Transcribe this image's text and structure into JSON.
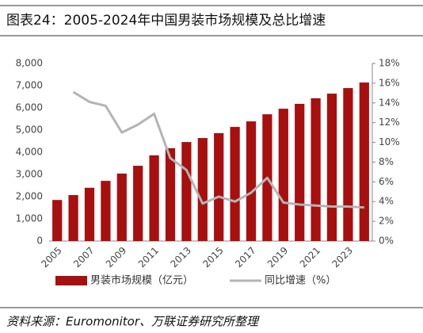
{
  "chart_data": {
    "type": "bar-line",
    "title": "图表24：2005-2024年中国男装市场规模及总比增速",
    "source": "资料来源：Euromonitor、万联证券研究所整理",
    "categories": [
      "2005",
      null,
      "2007",
      null,
      "2009",
      null,
      "2011",
      null,
      "2013",
      null,
      "2015",
      null,
      "2017",
      null,
      "2019",
      null,
      "2021",
      null,
      "2023",
      null
    ],
    "series": [
      {
        "name": "男装市场规模（亿元）",
        "color": "#a80f0f",
        "type": "bar",
        "values": [
          1850,
          2070,
          2400,
          2710,
          3040,
          3390,
          3860,
          4180,
          4460,
          4640,
          4860,
          5140,
          5390,
          5710,
          5960,
          6180,
          6430,
          6640,
          6890,
          7140
        ]
      },
      {
        "name": "同比增速（%）",
        "color": "#b4b4b4",
        "type": "line",
        "axis": "y2",
        "values": [
          null,
          15.1,
          14.1,
          13.7,
          11.0,
          11.8,
          12.9,
          8.4,
          7.2,
          3.8,
          4.5,
          4.0,
          4.9,
          6.4,
          3.9,
          3.7,
          3.6,
          3.5,
          3.5,
          3.4
        ]
      }
    ],
    "ylim": [
      0,
      8000
    ],
    "yticks": [
      0,
      {
        "value": 1000,
        "label": "1,000"
      },
      {
        "value": 2000,
        "label": "2,000"
      },
      {
        "value": 3000,
        "label": "3,000"
      },
      {
        "value": 4000,
        "label": "4,000"
      },
      {
        "value": 5000,
        "label": "5,000"
      },
      {
        "value": 6000,
        "label": "6,000"
      },
      {
        "value": 7000,
        "label": "7,000"
      },
      {
        "value": 8000,
        "label": "8,000"
      }
    ],
    "y2lim": [
      0,
      18
    ],
    "y2ticks": [
      {
        "value": 0,
        "label": "0%"
      },
      {
        "value": 2,
        "label": "2%"
      },
      {
        "value": 4,
        "label": "4%"
      },
      {
        "value": 6,
        "label": "6%"
      },
      {
        "value": 8,
        "label": "8%"
      },
      {
        "value": 10,
        "label": "10%"
      },
      {
        "value": 12,
        "label": "12%"
      },
      {
        "value": 14,
        "label": "14%"
      },
      {
        "value": 16,
        "label": "16%"
      },
      {
        "value": 18,
        "label": "18%"
      }
    ]
  }
}
